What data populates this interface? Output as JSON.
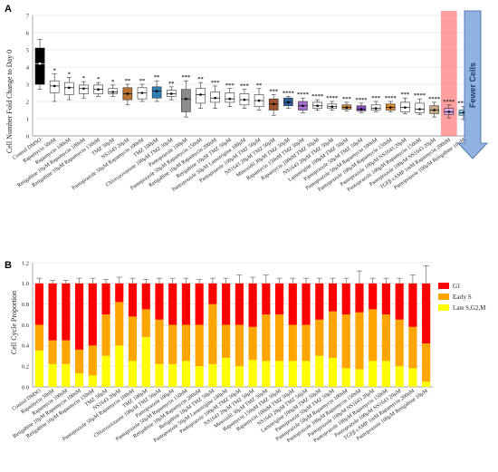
{
  "chart_data": [
    {
      "panel": "A",
      "type": "box",
      "ylabel": "Cell Number Fold Change to Day 0",
      "ylim": [
        0,
        7
      ],
      "yticks": [
        0,
        1,
        2,
        3,
        4,
        5,
        6,
        7
      ],
      "grid": true,
      "annotation": "Fewer Cells",
      "categories": [
        "Control DMSO",
        "Rapamycin 50nM",
        "Rapamycin 100nM",
        "Retigabine 10µM Rapamycin 100nM",
        "Retigabine 10µM Rapamycin 150nM",
        "TMZ 50µM",
        "NS1643 20µM",
        "Pantoprazole 50µM Rapamycin 100nM",
        "TMZ 100µM",
        "Chlorozoxazone 100µM TMZ 50µM",
        "Pantoprazole 100µM",
        "Pantoprazole 50µM Rapamycin 150nM",
        "Retigabine 10µM Rapamycin 200nM",
        "Retigabine 10µM TMZ 50µM",
        "Pantoprazole 50µM Lamotrigine 100µM",
        "Pantoprazole 100µM TMZ 50µM",
        "NS1643 20µM TMZ 50µM",
        "Minoxidil 30µM TMZ 50µM",
        "Rapamycin 150nM TMZ 50µM",
        "Rapamycin 100nM TMZ 50µM",
        "NS1643 20µM TMZ 50µM",
        "Lamotrigine 100µM TMZ 50µM",
        "Pantoprazole 50µM TMZ 50µM",
        "Pantoprazole 50µM Rapamycin 100nM",
        "Pantoprazole 100µM Rapamycin 150nM",
        "Pantoprazole 100µM NS1643 20µM",
        "Pantoprazole 100µM Rapamycin 150nM",
        "Pantoprazole 100µM NS1643 20µM",
        "TGFβ cAMP 1mM Rapamycin 200nM",
        "Pantoprazole 100µM Retigabine 10µM"
      ],
      "stars": [
        "",
        "*",
        "*",
        "*",
        "*",
        "*",
        "**",
        "**",
        "**",
        "**",
        "***",
        "**",
        "***",
        "***",
        "***",
        "**",
        "***",
        "****",
        "****",
        "****",
        "****",
        "***",
        "****",
        "***",
        "****",
        "***",
        "****",
        "****",
        "****",
        "****"
      ],
      "colors": [
        "#000000",
        "#ffffff",
        "#ffffff",
        "#ffffff",
        "#ffffff",
        "#ffffff",
        "#b87333",
        "#ffffff",
        "#2f7fb5",
        "#ffffff",
        "#8c8c8c",
        "#ffffff",
        "#ffffff",
        "#ffffff",
        "#ffffff",
        "#ffffff",
        "#a0522d",
        "#2f5f9f",
        "#a86fd0",
        "#ffffff",
        "#ffffff",
        "#d28a3a",
        "#8b4fc0",
        "#ffffff",
        "#e08a2a",
        "#ffffff",
        "#ffffff",
        "#c8a882",
        "#d6a6e8",
        "#88c8e8"
      ],
      "medians": [
        4.2,
        2.9,
        2.8,
        2.75,
        2.7,
        2.55,
        2.45,
        2.5,
        2.6,
        2.45,
        2.15,
        2.4,
        2.2,
        2.15,
        2.1,
        2.05,
        1.85,
        1.95,
        1.75,
        1.75,
        1.7,
        1.65,
        1.55,
        1.6,
        1.65,
        1.65,
        1.55,
        1.5,
        1.4,
        1.35
      ],
      "q1": [
        3.0,
        2.5,
        2.4,
        2.45,
        2.45,
        2.45,
        2.1,
        2.15,
        2.2,
        2.3,
        1.4,
        1.9,
        1.95,
        1.95,
        1.8,
        1.7,
        1.5,
        1.75,
        1.5,
        1.6,
        1.6,
        1.55,
        1.45,
        1.5,
        1.5,
        1.4,
        1.35,
        1.3,
        1.25,
        1.2
      ],
      "q3": [
        5.1,
        3.2,
        3.1,
        2.95,
        2.95,
        2.75,
        2.8,
        2.8,
        2.85,
        2.65,
        2.7,
        2.75,
        2.55,
        2.5,
        2.45,
        2.4,
        2.15,
        2.2,
        2.0,
        1.95,
        1.85,
        1.8,
        1.75,
        1.8,
        1.85,
        1.95,
        1.9,
        1.75,
        1.6,
        1.5
      ],
      "whisker_low": [
        2.7,
        2.0,
        2.1,
        2.2,
        2.3,
        2.3,
        1.8,
        2.0,
        2.0,
        2.1,
        1.1,
        1.6,
        1.6,
        1.7,
        1.6,
        1.5,
        1.2,
        1.6,
        1.35,
        1.5,
        1.5,
        1.45,
        1.35,
        1.4,
        1.4,
        1.3,
        1.25,
        1.1,
        1.05,
        0.95
      ],
      "whisker_high": [
        5.6,
        3.6,
        3.4,
        3.15,
        3.1,
        2.95,
        3.0,
        3.0,
        3.2,
        2.85,
        3.2,
        3.1,
        2.9,
        2.75,
        2.7,
        2.75,
        2.4,
        2.3,
        2.2,
        2.1,
        2.0,
        1.95,
        1.9,
        2.0,
        2.0,
        2.2,
        2.15,
        1.95,
        1.8,
        1.7
      ],
      "highlight_index": 28
    },
    {
      "panel": "B",
      "type": "stacked_bar",
      "ylabel": "Cell Cycle Proportion",
      "ylim": [
        0,
        1.2
      ],
      "yticks": [
        0,
        0.2,
        0.4,
        0.6,
        0.8,
        1.0,
        1.2
      ],
      "grid": true,
      "legend_position": "top-right",
      "categories": [
        "Control DMSO",
        "Rapamycin 50nM",
        "Rapamycin 100nM",
        "Retigabine 10µM Rapamycin 100nM",
        "Retigabine 10µM Rapamycin 150nM",
        "TMZ 50µM",
        "NS1643 20µM",
        "Pantoprazole 50µM Rapamycin 100nM",
        "TMZ 100µM",
        "Chlorozoxazone 100µM TMZ 50µM",
        "Pantoprazole 100µM",
        "Pantoprazole 50µM Rapamycin 150nM",
        "Retigabine 10µM Rapamycin 200nM",
        "Retigabine 10µM TMZ 50µM",
        "Pantoprazole 50µM Lamotrigine 100µM",
        "Pantoprazole 100µM TMZ 50µM",
        "NS1643 20µM TMZ 50µM",
        "Minoxidil 30µM TMZ 50µM",
        "Rapamycin 150nM TMZ 50µM",
        "Rapamycin 100nM TMZ 50µM",
        "NS1643 20µM TMZ 50µM",
        "Lamotrigine 100µM TMZ 50µM",
        "Pantoprazole 50µM TMZ 50µM",
        "Pantoprazole 50µM Rapamycin 100nM",
        "Pantoprazole 100µM Rapamycin 150nM",
        "Pantoprazole 100µM NS1643 20µM",
        "Pantoprazole 100µM Rapamycin 150nM",
        "Pantoprazole 100µM NS1643 20µM",
        "TGFβ cAMP 1mM Rapamycin 200nM",
        "Pantoprazole 100µM Retigabine 10µM"
      ],
      "series": [
        {
          "name": "Late S,G2,M",
          "color": "#ffff00",
          "values": [
            0.35,
            0.22,
            0.22,
            0.13,
            0.11,
            0.3,
            0.4,
            0.25,
            0.48,
            0.22,
            0.22,
            0.25,
            0.2,
            0.22,
            0.28,
            0.2,
            0.26,
            0.25,
            0.25,
            0.25,
            0.25,
            0.3,
            0.28,
            0.18,
            0.17,
            0.25,
            0.25,
            0.2,
            0.18,
            0.05
          ]
        },
        {
          "name": "Early S",
          "color": "#ffa500",
          "values": [
            0.25,
            0.23,
            0.23,
            0.23,
            0.29,
            0.4,
            0.42,
            0.43,
            0.27,
            0.43,
            0.38,
            0.35,
            0.4,
            0.58,
            0.32,
            0.4,
            0.32,
            0.45,
            0.45,
            0.35,
            0.35,
            0.35,
            0.45,
            0.52,
            0.55,
            0.5,
            0.45,
            0.45,
            0.4,
            0.37
          ]
        },
        {
          "name": "G1",
          "color": "#ff0000",
          "values": [
            0.4,
            0.55,
            0.55,
            0.64,
            0.6,
            0.3,
            0.18,
            0.32,
            0.25,
            0.35,
            0.4,
            0.4,
            0.4,
            0.2,
            0.4,
            0.4,
            0.42,
            0.3,
            0.3,
            0.4,
            0.4,
            0.35,
            0.27,
            0.3,
            0.28,
            0.25,
            0.3,
            0.35,
            0.42,
            0.58
          ]
        }
      ],
      "error_high": [
        1.05,
        1.03,
        1.03,
        1.05,
        1.05,
        1.04,
        1.06,
        1.05,
        1.04,
        1.05,
        1.05,
        1.05,
        1.04,
        1.05,
        1.05,
        1.08,
        1.06,
        1.08,
        1.05,
        1.05,
        1.05,
        1.05,
        1.05,
        1.05,
        1.12,
        1.05,
        1.05,
        1.05,
        1.08,
        1.17
      ]
    }
  ]
}
